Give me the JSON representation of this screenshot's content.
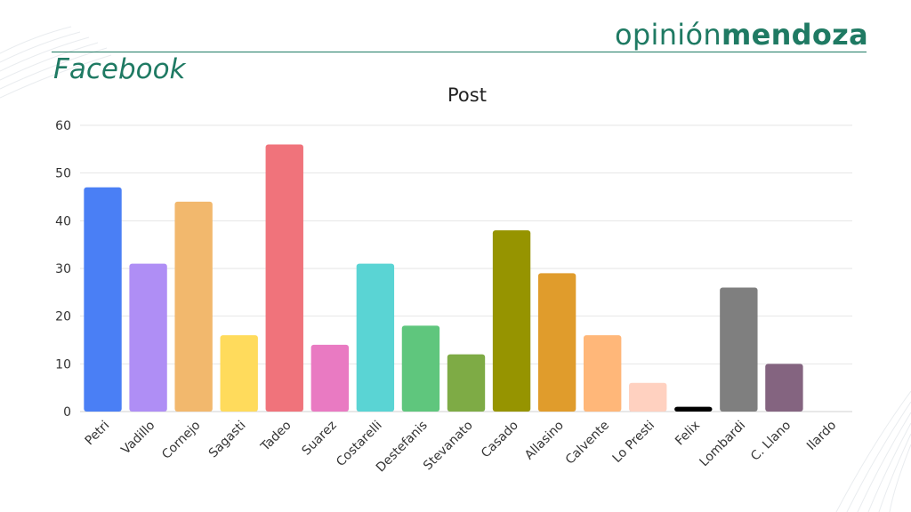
{
  "brand": {
    "light": "opinión",
    "bold": "mendoza",
    "color": "#1f7a63"
  },
  "heading": "Facebook",
  "chart_data": {
    "type": "bar",
    "title": "Post",
    "xlabel": "",
    "ylabel": "",
    "ylim": [
      0,
      60
    ],
    "yticks": [
      0,
      10,
      20,
      30,
      40,
      50,
      60
    ],
    "grid": true,
    "legend": "none",
    "categories": [
      "Petri",
      "Vadillo",
      "Cornejo",
      "Sagasti",
      "Tadeo",
      "Suarez",
      "Costarelli",
      "Destefanis",
      "Stevanato",
      "Casado",
      "Allasino",
      "Calvente",
      "Lo Presti",
      "Felix",
      "Lombardi",
      "C. Llano",
      "Ilardo"
    ],
    "values": [
      47,
      31,
      44,
      16,
      56,
      14,
      31,
      18,
      12,
      38,
      29,
      16,
      6,
      1,
      26,
      10,
      0
    ],
    "colors": [
      "#4a7ff5",
      "#af8ef5",
      "#f2b86d",
      "#ffdb5c",
      "#f0737b",
      "#e97ac2",
      "#5ad4d4",
      "#5fc67d",
      "#7eab45",
      "#969400",
      "#e09c2c",
      "#ffb779",
      "#ffd1c0",
      "#000000",
      "#7f7f7f",
      "#846480",
      "#cccccc"
    ]
  }
}
